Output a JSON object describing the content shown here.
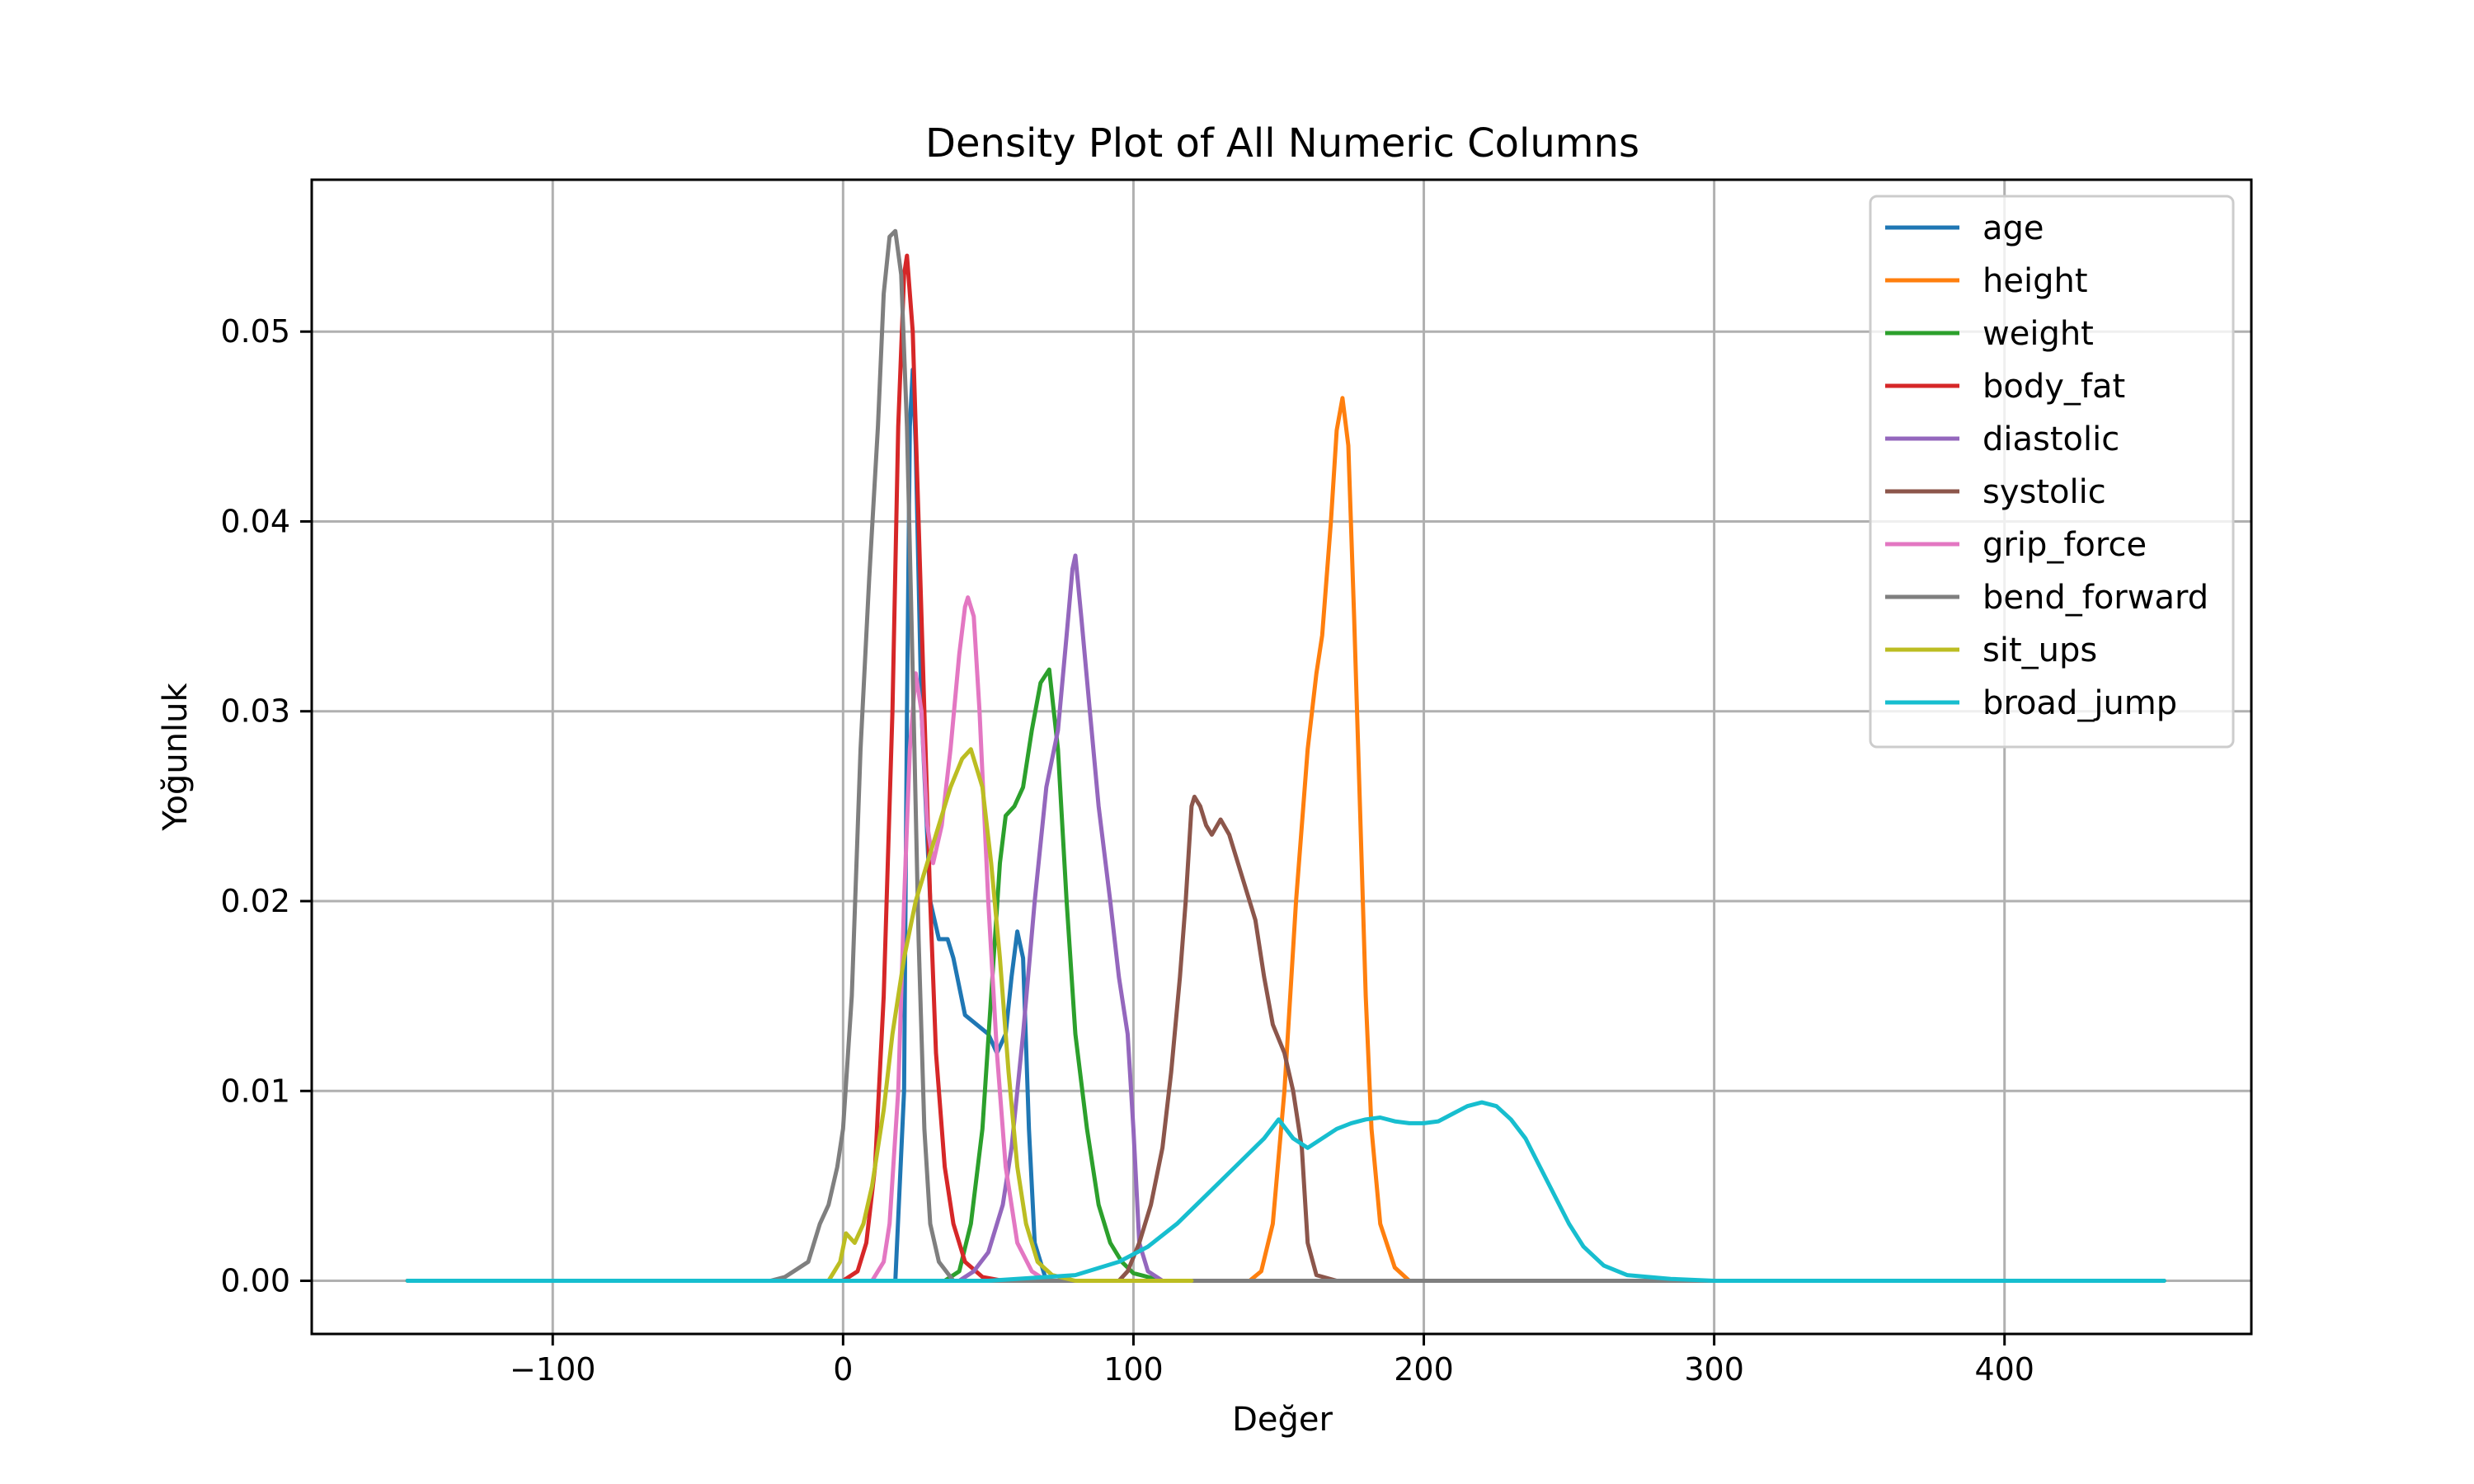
{
  "chart_data": {
    "type": "line",
    "title": "Density Plot of All Numeric Columns",
    "xlabel": "Değer",
    "ylabel": "Yoğunluk",
    "xlim": [
      -183,
      485
    ],
    "ylim": [
      -0.0028,
      0.058
    ],
    "x_ticks": [
      -100,
      0,
      100,
      200,
      300,
      400
    ],
    "x_tick_labels": [
      "−100",
      "0",
      "100",
      "200",
      "300",
      "400"
    ],
    "y_ticks": [
      0.0,
      0.01,
      0.02,
      0.03,
      0.04,
      0.05
    ],
    "y_tick_labels": [
      "0.00",
      "0.01",
      "0.02",
      "0.03",
      "0.04",
      "0.05"
    ],
    "grid": true,
    "legend_position": "top-right",
    "series": [
      {
        "name": "age",
        "color": "#1f77b4",
        "points": [
          [
            -150,
            0
          ],
          [
            18,
            0
          ],
          [
            21,
            0.01
          ],
          [
            22,
            0.03
          ],
          [
            23,
            0.045
          ],
          [
            24,
            0.048
          ],
          [
            25,
            0.044
          ],
          [
            27,
            0.03
          ],
          [
            30,
            0.02
          ],
          [
            33,
            0.018
          ],
          [
            36,
            0.018
          ],
          [
            38,
            0.017
          ],
          [
            42,
            0.014
          ],
          [
            46,
            0.0135
          ],
          [
            50,
            0.013
          ],
          [
            53,
            0.012
          ],
          [
            56,
            0.013
          ],
          [
            58,
            0.016
          ],
          [
            60,
            0.0184
          ],
          [
            62,
            0.017
          ],
          [
            64,
            0.008
          ],
          [
            66,
            0.002
          ],
          [
            70,
            0
          ],
          [
            120,
            0
          ]
        ]
      },
      {
        "name": "height",
        "color": "#ff7f0e",
        "points": [
          [
            -150,
            0
          ],
          [
            140,
            0
          ],
          [
            144,
            0.0005
          ],
          [
            148,
            0.003
          ],
          [
            152,
            0.01
          ],
          [
            156,
            0.02
          ],
          [
            160,
            0.028
          ],
          [
            163,
            0.032
          ],
          [
            165,
            0.034
          ],
          [
            168,
            0.04
          ],
          [
            170,
            0.0448
          ],
          [
            172,
            0.0465
          ],
          [
            174,
            0.044
          ],
          [
            176,
            0.035
          ],
          [
            178,
            0.025
          ],
          [
            180,
            0.015
          ],
          [
            182,
            0.008
          ],
          [
            185,
            0.003
          ],
          [
            190,
            0.0007
          ],
          [
            195,
            0
          ],
          [
            455,
            0
          ]
        ]
      },
      {
        "name": "weight",
        "color": "#2ca02c",
        "points": [
          [
            -150,
            0
          ],
          [
            35,
            0
          ],
          [
            40,
            0.0005
          ],
          [
            44,
            0.003
          ],
          [
            48,
            0.008
          ],
          [
            51,
            0.015
          ],
          [
            54,
            0.022
          ],
          [
            56,
            0.0245
          ],
          [
            59,
            0.025
          ],
          [
            62,
            0.026
          ],
          [
            65,
            0.029
          ],
          [
            68,
            0.0315
          ],
          [
            71,
            0.0322
          ],
          [
            74,
            0.028
          ],
          [
            77,
            0.02
          ],
          [
            80,
            0.013
          ],
          [
            84,
            0.008
          ],
          [
            88,
            0.004
          ],
          [
            92,
            0.002
          ],
          [
            96,
            0.001
          ],
          [
            100,
            0.0004
          ],
          [
            110,
            0
          ],
          [
            180,
            0
          ]
        ]
      },
      {
        "name": "body_fat",
        "color": "#d62728",
        "points": [
          [
            -150,
            0
          ],
          [
            0,
            0
          ],
          [
            5,
            0.0005
          ],
          [
            8,
            0.002
          ],
          [
            11,
            0.006
          ],
          [
            14,
            0.015
          ],
          [
            17,
            0.03
          ],
          [
            19,
            0.045
          ],
          [
            21,
            0.053
          ],
          [
            22,
            0.054
          ],
          [
            24,
            0.05
          ],
          [
            26,
            0.04
          ],
          [
            28,
            0.03
          ],
          [
            30,
            0.02
          ],
          [
            32,
            0.012
          ],
          [
            35,
            0.006
          ],
          [
            38,
            0.003
          ],
          [
            42,
            0.001
          ],
          [
            48,
            0.0002
          ],
          [
            55,
            0
          ],
          [
            120,
            0
          ]
        ]
      },
      {
        "name": "diastolic",
        "color": "#9467bd",
        "points": [
          [
            -150,
            0
          ],
          [
            40,
            0
          ],
          [
            45,
            0.0005
          ],
          [
            50,
            0.0015
          ],
          [
            55,
            0.004
          ],
          [
            58,
            0.007
          ],
          [
            62,
            0.013
          ],
          [
            66,
            0.02
          ],
          [
            70,
            0.026
          ],
          [
            74,
            0.029
          ],
          [
            77,
            0.034
          ],
          [
            79,
            0.0375
          ],
          [
            80,
            0.0382
          ],
          [
            82,
            0.035
          ],
          [
            85,
            0.03
          ],
          [
            88,
            0.025
          ],
          [
            92,
            0.02
          ],
          [
            95,
            0.016
          ],
          [
            98,
            0.013
          ],
          [
            100,
            0.008
          ],
          [
            102,
            0.002
          ],
          [
            105,
            0.0005
          ],
          [
            110,
            0
          ],
          [
            180,
            0
          ]
        ]
      },
      {
        "name": "systolic",
        "color": "#8c564b",
        "points": [
          [
            -150,
            0
          ],
          [
            95,
            0
          ],
          [
            98,
            0.0005
          ],
          [
            102,
            0.002
          ],
          [
            106,
            0.004
          ],
          [
            110,
            0.007
          ],
          [
            113,
            0.011
          ],
          [
            116,
            0.016
          ],
          [
            118,
            0.02
          ],
          [
            120,
            0.025
          ],
          [
            121,
            0.0255
          ],
          [
            123,
            0.025
          ],
          [
            125,
            0.024
          ],
          [
            127,
            0.0235
          ],
          [
            130,
            0.0243
          ],
          [
            133,
            0.0235
          ],
          [
            137,
            0.0215
          ],
          [
            142,
            0.019
          ],
          [
            145,
            0.016
          ],
          [
            148,
            0.0135
          ],
          [
            152,
            0.012
          ],
          [
            155,
            0.01
          ],
          [
            158,
            0.007
          ],
          [
            160,
            0.002
          ],
          [
            163,
            0.0003
          ],
          [
            170,
            0
          ],
          [
            200,
            0
          ]
        ]
      },
      {
        "name": "grip_force",
        "color": "#e377c2",
        "points": [
          [
            -150,
            0
          ],
          [
            10,
            0
          ],
          [
            14,
            0.001
          ],
          [
            16,
            0.003
          ],
          [
            19,
            0.01
          ],
          [
            21,
            0.02
          ],
          [
            23,
            0.028
          ],
          [
            25,
            0.032
          ],
          [
            27,
            0.03
          ],
          [
            29,
            0.024
          ],
          [
            31,
            0.022
          ],
          [
            34,
            0.024
          ],
          [
            37,
            0.028
          ],
          [
            40,
            0.033
          ],
          [
            42,
            0.0355
          ],
          [
            43,
            0.036
          ],
          [
            45,
            0.035
          ],
          [
            47,
            0.03
          ],
          [
            50,
            0.02
          ],
          [
            53,
            0.012
          ],
          [
            56,
            0.006
          ],
          [
            60,
            0.002
          ],
          [
            65,
            0.0005
          ],
          [
            70,
            0
          ],
          [
            120,
            0
          ]
        ]
      },
      {
        "name": "bend_forward",
        "color": "#7f7f7f",
        "points": [
          [
            -150,
            0
          ],
          [
            -25,
            0
          ],
          [
            -20,
            0.0002
          ],
          [
            -17,
            0.0005
          ],
          [
            -12,
            0.001
          ],
          [
            -8,
            0.003
          ],
          [
            -5,
            0.004
          ],
          [
            -2,
            0.006
          ],
          [
            0,
            0.008
          ],
          [
            3,
            0.015
          ],
          [
            6,
            0.028
          ],
          [
            9,
            0.037
          ],
          [
            12,
            0.045
          ],
          [
            14,
            0.052
          ],
          [
            16,
            0.055
          ],
          [
            18,
            0.0553
          ],
          [
            20,
            0.053
          ],
          [
            22,
            0.045
          ],
          [
            24,
            0.032
          ],
          [
            26,
            0.018
          ],
          [
            28,
            0.008
          ],
          [
            30,
            0.003
          ],
          [
            33,
            0.001
          ],
          [
            38,
            0
          ],
          [
            300,
            0
          ]
        ]
      },
      {
        "name": "sit_ups",
        "color": "#bcbd22",
        "points": [
          [
            -150,
            0
          ],
          [
            -5,
            0
          ],
          [
            -3,
            0.0005
          ],
          [
            -1,
            0.001
          ],
          [
            1,
            0.0025
          ],
          [
            4,
            0.002
          ],
          [
            7,
            0.003
          ],
          [
            10,
            0.005
          ],
          [
            14,
            0.009
          ],
          [
            17,
            0.013
          ],
          [
            21,
            0.017
          ],
          [
            25,
            0.02
          ],
          [
            29,
            0.022
          ],
          [
            33,
            0.024
          ],
          [
            37,
            0.026
          ],
          [
            41,
            0.0275
          ],
          [
            44,
            0.028
          ],
          [
            48,
            0.026
          ],
          [
            51,
            0.022
          ],
          [
            54,
            0.017
          ],
          [
            57,
            0.011
          ],
          [
            60,
            0.006
          ],
          [
            63,
            0.003
          ],
          [
            67,
            0.001
          ],
          [
            72,
            0.0003
          ],
          [
            80,
            0
          ],
          [
            120,
            0
          ]
        ]
      },
      {
        "name": "broad_jump",
        "color": "#17becf",
        "points": [
          [
            -150,
            0
          ],
          [
            50,
            0
          ],
          [
            80,
            0.0003
          ],
          [
            95,
            0.001
          ],
          [
            105,
            0.0018
          ],
          [
            115,
            0.003
          ],
          [
            125,
            0.0045
          ],
          [
            135,
            0.006
          ],
          [
            145,
            0.0075
          ],
          [
            150,
            0.0085
          ],
          [
            155,
            0.0075
          ],
          [
            160,
            0.007
          ],
          [
            165,
            0.0075
          ],
          [
            170,
            0.008
          ],
          [
            175,
            0.0083
          ],
          [
            180,
            0.0085
          ],
          [
            185,
            0.0086
          ],
          [
            190,
            0.0084
          ],
          [
            195,
            0.0083
          ],
          [
            200,
            0.0083
          ],
          [
            205,
            0.0084
          ],
          [
            210,
            0.0088
          ],
          [
            215,
            0.0092
          ],
          [
            220,
            0.0094
          ],
          [
            225,
            0.0092
          ],
          [
            230,
            0.0085
          ],
          [
            235,
            0.0075
          ],
          [
            240,
            0.006
          ],
          [
            245,
            0.0045
          ],
          [
            250,
            0.003
          ],
          [
            255,
            0.0018
          ],
          [
            262,
            0.0008
          ],
          [
            270,
            0.0003
          ],
          [
            285,
            0.0001
          ],
          [
            300,
            0
          ],
          [
            455,
            0
          ]
        ]
      }
    ]
  }
}
